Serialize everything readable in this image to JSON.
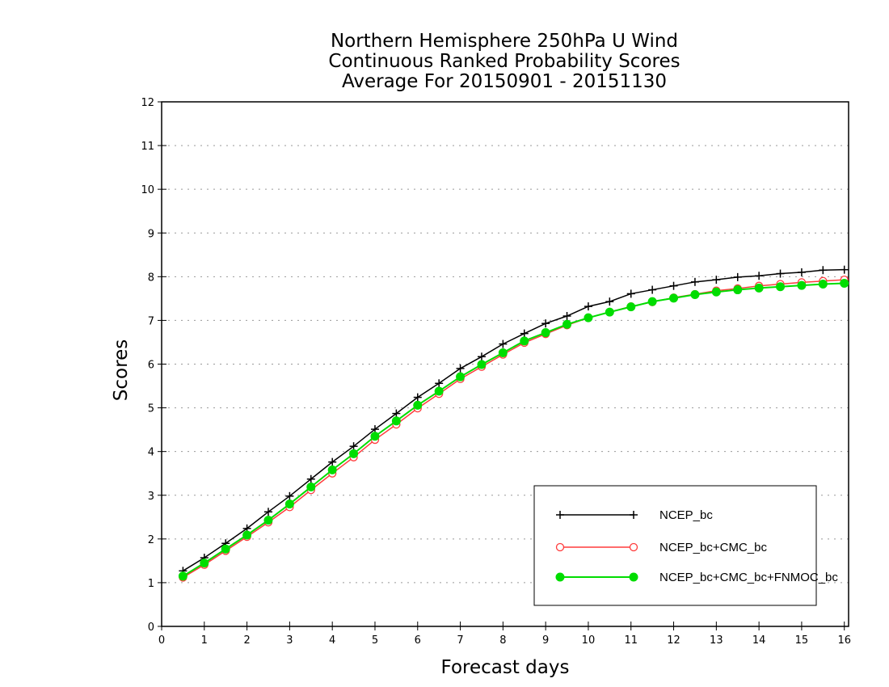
{
  "chart_data": {
    "type": "line",
    "title": [
      "Northern Hemisphere 250hPa U Wind",
      "Continuous Ranked Probability Scores",
      "Average For 20150901 - 20151130"
    ],
    "xlabel": "Forecast days",
    "ylabel": "Scores",
    "xlim": [
      0,
      16.1
    ],
    "ylim": [
      0,
      12
    ],
    "xticks": [
      0,
      1,
      2,
      3,
      4,
      5,
      6,
      7,
      8,
      9,
      10,
      11,
      12,
      13,
      14,
      15,
      16
    ],
    "yticks": [
      0,
      1,
      2,
      3,
      4,
      5,
      6,
      7,
      8,
      9,
      10,
      11,
      12
    ],
    "grid": "horizontal dotted",
    "legend_position": "bottom-right",
    "x": [
      0.5,
      1,
      1.5,
      2,
      2.5,
      3,
      3.5,
      4,
      4.5,
      5,
      5.5,
      6,
      6.5,
      7,
      7.5,
      8,
      8.5,
      9,
      9.5,
      10,
      10.5,
      11,
      11.5,
      12,
      12.5,
      13,
      13.5,
      14,
      14.5,
      15,
      15.5,
      16
    ],
    "series": [
      {
        "name": "NCEP_bc",
        "color": "#000000",
        "marker": "plus",
        "values": [
          1.27,
          1.57,
          1.9,
          2.24,
          2.62,
          2.98,
          3.37,
          3.76,
          4.12,
          4.51,
          4.87,
          5.24,
          5.56,
          5.9,
          6.17,
          6.46,
          6.7,
          6.93,
          7.1,
          7.32,
          7.43,
          7.61,
          7.7,
          7.79,
          7.88,
          7.93,
          7.99,
          8.02,
          8.07,
          8.1,
          8.15,
          8.16
        ]
      },
      {
        "name": "NCEP_bc+CMC_bc",
        "color": "#ff3b3b",
        "marker": "open-circle",
        "values": [
          1.12,
          1.41,
          1.73,
          2.05,
          2.38,
          2.73,
          3.12,
          3.5,
          3.87,
          4.27,
          4.62,
          4.99,
          5.32,
          5.66,
          5.94,
          6.22,
          6.49,
          6.69,
          6.89,
          7.06,
          7.19,
          7.32,
          7.42,
          7.52,
          7.6,
          7.68,
          7.73,
          7.79,
          7.83,
          7.87,
          7.9,
          7.93
        ]
      },
      {
        "name": "NCEP_bc+CMC_bc+FNMOC_bc",
        "color": "#00dd00",
        "marker": "filled-circle",
        "values": [
          1.15,
          1.45,
          1.77,
          2.09,
          2.43,
          2.8,
          3.19,
          3.58,
          3.95,
          4.35,
          4.7,
          5.06,
          5.38,
          5.71,
          5.99,
          6.26,
          6.53,
          6.72,
          6.91,
          7.06,
          7.19,
          7.31,
          7.43,
          7.51,
          7.59,
          7.65,
          7.7,
          7.74,
          7.77,
          7.8,
          7.83,
          7.85
        ]
      }
    ]
  }
}
